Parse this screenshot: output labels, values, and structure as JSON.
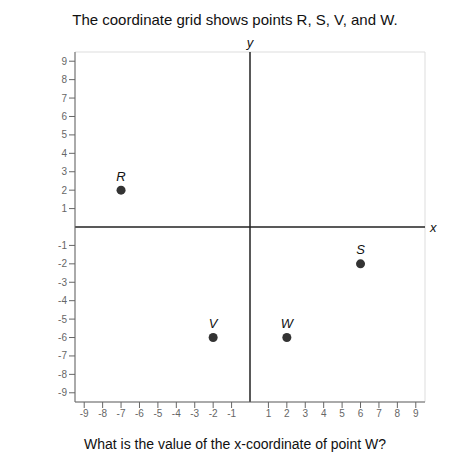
{
  "chart_data": {
    "type": "scatter",
    "title": "The coordinate grid shows points R, S, V, and W.",
    "annotations": [
      "What is the value of the x-coordinate of point W?"
    ],
    "x_label": "x",
    "y_label": "y",
    "x": [
      -7,
      6,
      -2,
      2
    ],
    "values": [
      2,
      -2,
      -6,
      -6
    ],
    "labels": [
      "R",
      "S",
      "V",
      "W"
    ],
    "color": "#333333",
    "xlim": [
      -9.5,
      9.5
    ],
    "ylim": [
      -9.5,
      9.5
    ],
    "xticks": [
      -9,
      -8,
      -7,
      -6,
      -5,
      -4,
      -3,
      -2,
      -1,
      1,
      2,
      3,
      4,
      5,
      6,
      7,
      8,
      9
    ],
    "yticks": [
      -9,
      -8,
      -7,
      -6,
      -5,
      -4,
      -3,
      -2,
      -1,
      1,
      2,
      3,
      4,
      5,
      6,
      7,
      8,
      9
    ],
    "grid": true
  }
}
